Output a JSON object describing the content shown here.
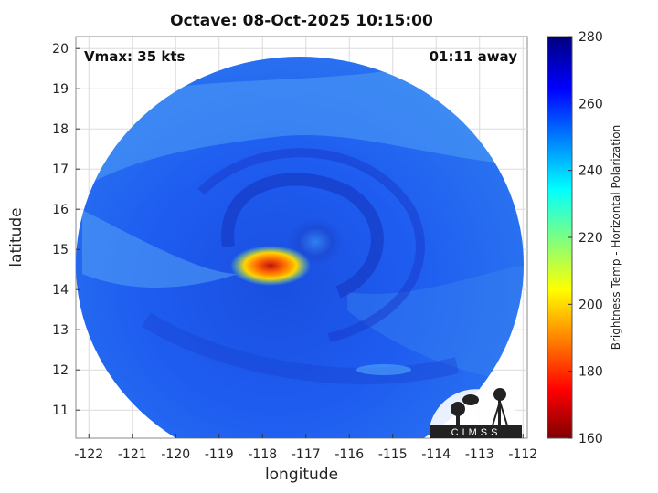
{
  "title": "Octave: 08-Oct-2025 10:15:00",
  "vmax_label": "Vmax: 35 kts",
  "away_label": "01:11 away",
  "xlabel": "longitude",
  "ylabel": "latitude",
  "colorbar_label": "Brightness Temp - Horizontal Polarization",
  "logo_text": "CIMSS",
  "chart_data": {
    "type": "heatmap",
    "xlim": [
      -122.3,
      -111.9
    ],
    "ylim": [
      10.3,
      20.3
    ],
    "x_ticks": [
      -122,
      -121,
      -120,
      -119,
      -118,
      -117,
      -116,
      -115,
      -114,
      -113,
      -112
    ],
    "y_ticks": [
      11,
      12,
      13,
      14,
      15,
      16,
      17,
      18,
      19,
      20
    ],
    "colorbar_range": [
      160,
      280
    ],
    "colorbar_ticks": [
      160,
      180,
      200,
      220,
      240,
      260,
      280
    ],
    "colormap": "jet",
    "grid": true,
    "storm_center": {
      "lon": -117.3,
      "lat": 15.1
    },
    "hotspot": {
      "lon": -118.0,
      "lat": 14.5,
      "min_temp": 175
    }
  }
}
